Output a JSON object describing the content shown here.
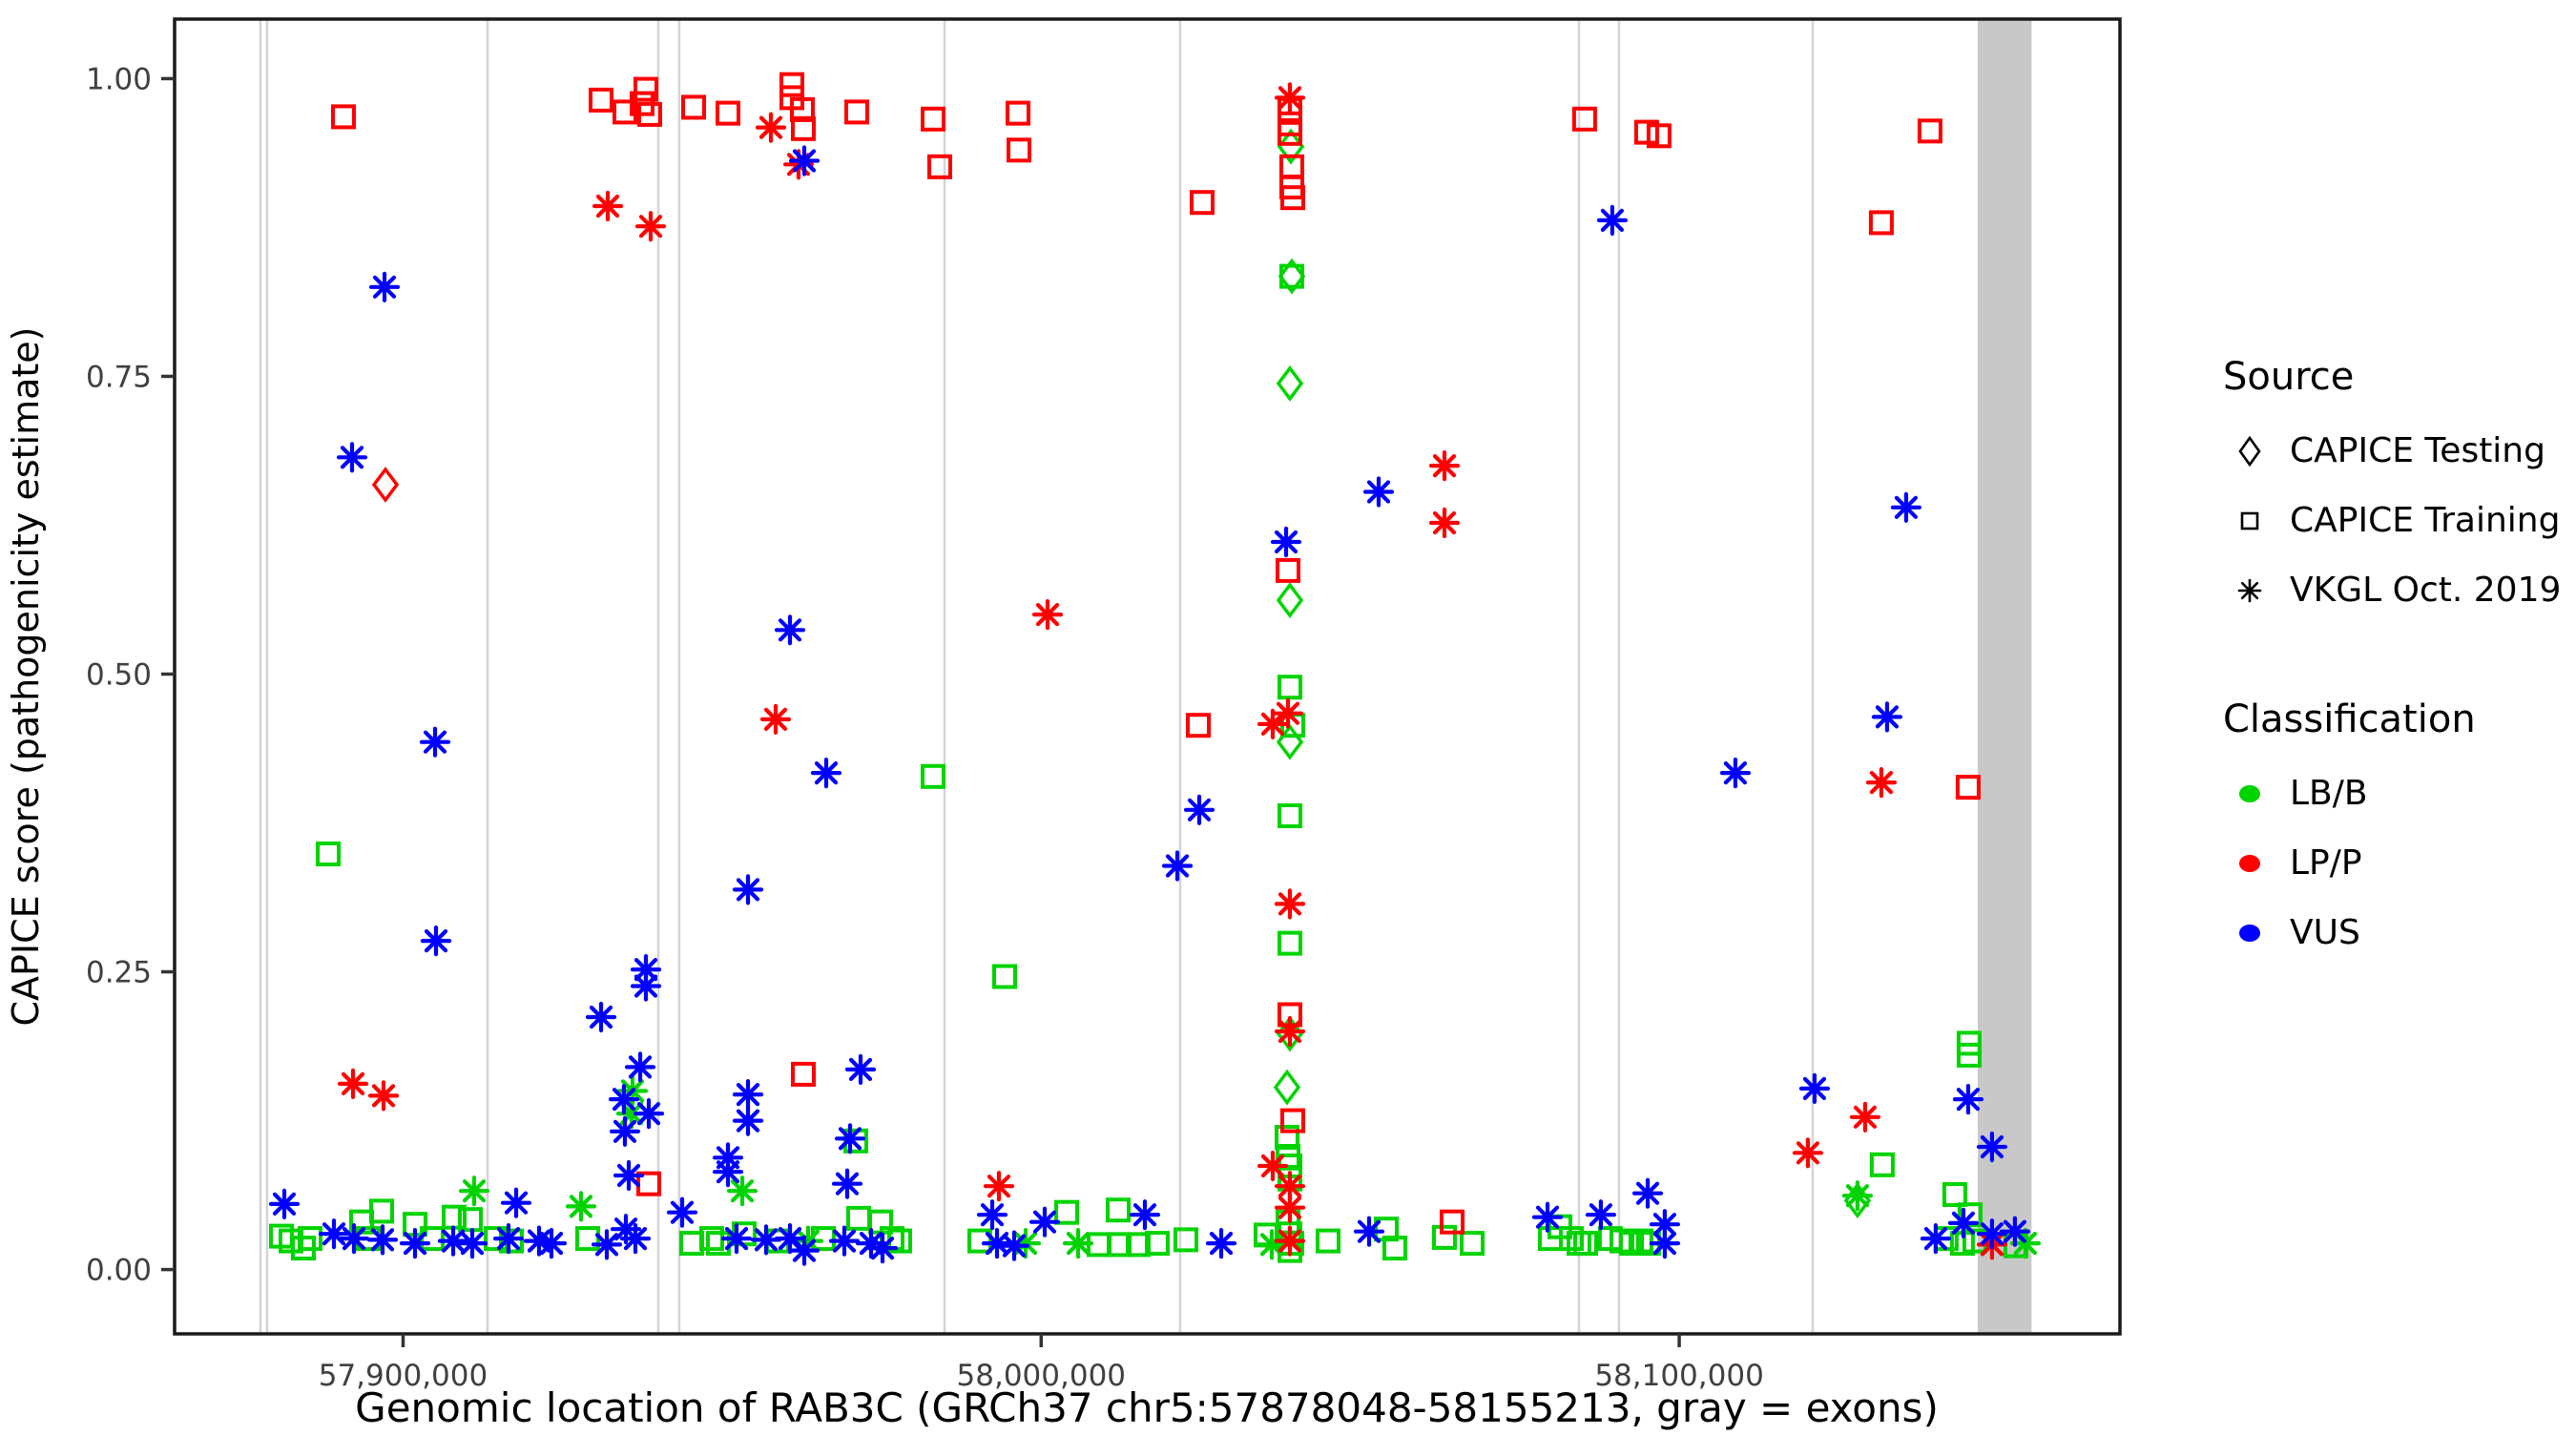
{
  "axis": {
    "title_x": "Genomic location of RAB3C (GRCh37 chr5:57878048-58155213, gray = exons)",
    "title_y": "CAPICE score (pathogenicity estimate)"
  },
  "legend": {
    "source": {
      "title": "Source",
      "items": [
        {
          "label": "CAPICE Testing",
          "marker": "diamond"
        },
        {
          "label": "CAPICE Training",
          "marker": "square"
        },
        {
          "label": "VKGL Oct. 2019",
          "marker": "asterisk"
        }
      ]
    },
    "classification": {
      "title": "Classification",
      "items": [
        {
          "label": "LB/B",
          "color": "#00d400"
        },
        {
          "label": "LP/P",
          "color": "#ff0000"
        },
        {
          "label": "VUS",
          "color": "#0000ff"
        }
      ]
    }
  },
  "chart_data": {
    "type": "scatter",
    "title": "",
    "xlabel": "Genomic location of RAB3C (GRCh37 chr5:57878048-58155213, gray = exons)",
    "ylabel": "CAPICE score (pathogenicity estimate)",
    "x_domain": [
      57864190,
      58169071
    ],
    "y_domain": [
      -0.054,
      1.05
    ],
    "x_ticks": [
      {
        "value": 57900000,
        "label": "57,900,000"
      },
      {
        "value": 58000000,
        "label": "58,000,000"
      },
      {
        "value": 58100000,
        "label": "58,100,000"
      }
    ],
    "y_ticks": [
      {
        "value": 0.0,
        "label": "0.00"
      },
      {
        "value": 0.25,
        "label": "0.25"
      },
      {
        "value": 0.5,
        "label": "0.50"
      },
      {
        "value": 0.75,
        "label": "0.75"
      },
      {
        "value": 1.0,
        "label": "1.00"
      }
    ],
    "grid": false,
    "legend_position": "right",
    "exons": {
      "line_positions_bp": [
        57877644,
        57878690,
        57913233,
        57939997,
        57943283,
        57984853,
        58021784,
        58084283,
        58090563,
        58120916
      ],
      "band_bp": [
        58146783,
        58155213
      ],
      "line_color": "#d4d4d4",
      "band_color": "#c8c8c8"
    },
    "marker_codes": {
      "s": "square (CAPICE Training)",
      "d": "diamond (CAPICE Testing)",
      "a": "asterisk (VKGL Oct. 2019)"
    },
    "class_codes": {
      "g": "LB/B",
      "r": "LP/P",
      "b": "VUS"
    },
    "class_colors": {
      "g": "#00d400",
      "r": "#ff0000",
      "b": "#0000ff"
    },
    "points_columns": [
      "genomic_position",
      "capice_score",
      "marker",
      "classification"
    ],
    "points": [
      [
        57880936,
        0.028,
        "s",
        "g"
      ],
      [
        57882431,
        0.024,
        "s",
        "g"
      ],
      [
        57884375,
        0.018,
        "s",
        "g"
      ],
      [
        57885422,
        0.026,
        "s",
        "g"
      ],
      [
        57888263,
        0.349,
        "s",
        "g"
      ],
      [
        57893496,
        0.04,
        "s",
        "g"
      ],
      [
        57894543,
        0.026,
        "s",
        "g"
      ],
      [
        57896636,
        0.049,
        "s",
        "g"
      ],
      [
        57901869,
        0.038,
        "s",
        "g"
      ],
      [
        57904560,
        0.026,
        "s",
        "g"
      ],
      [
        57908000,
        0.044,
        "s",
        "g"
      ],
      [
        57910541,
        0.042,
        "s",
        "g"
      ],
      [
        57914578,
        0.026,
        "s",
        "g"
      ],
      [
        57916971,
        0.024,
        "s",
        "g"
      ],
      [
        57928932,
        0.026,
        "s",
        "g"
      ],
      [
        57945230,
        0.022,
        "s",
        "g"
      ],
      [
        57948370,
        0.026,
        "s",
        "g"
      ],
      [
        57949416,
        0.022,
        "s",
        "g"
      ],
      [
        57953453,
        0.03,
        "s",
        "g"
      ],
      [
        57958687,
        0.024,
        "s",
        "g"
      ],
      [
        57965864,
        0.026,
        "s",
        "g"
      ],
      [
        57970947,
        0.108,
        "s",
        "g"
      ],
      [
        57971396,
        0.043,
        "s",
        "g"
      ],
      [
        57974835,
        0.04,
        "s",
        "g"
      ],
      [
        57976629,
        0.026,
        "s",
        "g"
      ],
      [
        57977825,
        0.024,
        "s",
        "g"
      ],
      [
        57983058,
        0.414,
        "s",
        "g"
      ],
      [
        57990385,
        0.024,
        "s",
        "g"
      ],
      [
        57994272,
        0.246,
        "s",
        "g"
      ],
      [
        58003991,
        0.048,
        "s",
        "g"
      ],
      [
        58009075,
        0.021,
        "s",
        "g"
      ],
      [
        58012065,
        0.05,
        "s",
        "g"
      ],
      [
        58012215,
        0.021,
        "s",
        "g"
      ],
      [
        58015205,
        0.021,
        "s",
        "g"
      ],
      [
        58018196,
        0.022,
        "s",
        "g"
      ],
      [
        58022681,
        0.025,
        "s",
        "g"
      ],
      [
        58044959,
        0.024,
        "s",
        "g"
      ],
      [
        58054080,
        0.034,
        "s",
        "g"
      ],
      [
        58055426,
        0.018,
        "s",
        "g"
      ],
      [
        58063201,
        0.027,
        "s",
        "g"
      ],
      [
        58067537,
        0.022,
        "s",
        "g"
      ],
      [
        58079798,
        0.026,
        "s",
        "g"
      ],
      [
        58081293,
        0.036,
        "s",
        "g"
      ],
      [
        58083087,
        0.026,
        "s",
        "g"
      ],
      [
        58084283,
        0.022,
        "s",
        "g"
      ],
      [
        58085330,
        0.022,
        "s",
        "g"
      ],
      [
        58089217,
        0.026,
        "s",
        "g"
      ],
      [
        58091012,
        0.024,
        "s",
        "g"
      ],
      [
        58092507,
        0.022,
        "s",
        "g"
      ],
      [
        58094002,
        0.024,
        "s",
        "g"
      ],
      [
        58095198,
        0.022,
        "s",
        "g"
      ],
      [
        58131830,
        0.088,
        "s",
        "g"
      ],
      [
        58141848,
        0.026,
        "s",
        "g"
      ],
      [
        58143194,
        0.063,
        "s",
        "g"
      ],
      [
        58144390,
        0.022,
        "s",
        "g"
      ],
      [
        58145437,
        0.19,
        "s",
        "g"
      ],
      [
        58145437,
        0.18,
        "s",
        "g"
      ],
      [
        58145587,
        0.046,
        "s",
        "g"
      ],
      [
        58146334,
        0.024,
        "s",
        "g"
      ],
      [
        58152764,
        0.02,
        "s",
        "g"
      ],
      [
        58039278,
        0.834,
        "s",
        "g"
      ],
      [
        58038979,
        0.489,
        "s",
        "g"
      ],
      [
        58039427,
        0.457,
        "s",
        "g"
      ],
      [
        58038979,
        0.381,
        "s",
        "g"
      ],
      [
        58038979,
        0.274,
        "s",
        "g"
      ],
      [
        58038530,
        0.111,
        "s",
        "g"
      ],
      [
        58038680,
        0.095,
        "s",
        "g"
      ],
      [
        58038979,
        0.087,
        "s",
        "g"
      ],
      [
        58038979,
        0.076,
        "s",
        "g"
      ],
      [
        58038680,
        0.04,
        "s",
        "g"
      ],
      [
        58038979,
        0.03,
        "s",
        "g"
      ],
      [
        58035241,
        0.029,
        "s",
        "g"
      ],
      [
        58039278,
        0.022,
        "s",
        "g"
      ],
      [
        58038979,
        0.016,
        "s",
        "g"
      ],
      [
        58039128,
        0.943,
        "d",
        "g"
      ],
      [
        58039278,
        0.834,
        "d",
        "g"
      ],
      [
        58038979,
        0.744,
        "d",
        "g"
      ],
      [
        58038979,
        0.562,
        "d",
        "g"
      ],
      [
        58038979,
        0.443,
        "d",
        "g"
      ],
      [
        58038979,
        0.198,
        "d",
        "g"
      ],
      [
        58038530,
        0.153,
        "d",
        "g"
      ],
      [
        58127943,
        0.058,
        "d",
        "g"
      ],
      [
        57911139,
        0.066,
        "a",
        "g"
      ],
      [
        57927885,
        0.053,
        "a",
        "g"
      ],
      [
        57935960,
        0.15,
        "a",
        "g"
      ],
      [
        57935810,
        0.131,
        "a",
        "g"
      ],
      [
        57953154,
        0.066,
        "a",
        "g"
      ],
      [
        57963471,
        0.024,
        "a",
        "g"
      ],
      [
        57997562,
        0.022,
        "a",
        "g"
      ],
      [
        58005785,
        0.022,
        "a",
        "g"
      ],
      [
        58036138,
        0.021,
        "a",
        "g"
      ],
      [
        58127943,
        0.062,
        "a",
        "g"
      ],
      [
        58154259,
        0.022,
        "a",
        "g"
      ],
      [
        57890655,
        0.968,
        "s",
        "r"
      ],
      [
        57931025,
        0.982,
        "s",
        "r"
      ],
      [
        57934763,
        0.972,
        "s",
        "r"
      ],
      [
        57937455,
        0.979,
        "s",
        "r"
      ],
      [
        57938053,
        0.991,
        "s",
        "r"
      ],
      [
        57938651,
        0.97,
        "s",
        "r"
      ],
      [
        57945529,
        0.976,
        "s",
        "r"
      ],
      [
        57950912,
        0.971,
        "s",
        "r"
      ],
      [
        57960929,
        0.995,
        "s",
        "r"
      ],
      [
        57960929,
        0.984,
        "s",
        "r"
      ],
      [
        57962574,
        0.974,
        "s",
        "r"
      ],
      [
        57962724,
        0.958,
        "s",
        "r"
      ],
      [
        57971097,
        0.972,
        "s",
        "r"
      ],
      [
        57983058,
        0.966,
        "s",
        "r"
      ],
      [
        57984105,
        0.926,
        "s",
        "r"
      ],
      [
        57996365,
        0.971,
        "s",
        "r"
      ],
      [
        57996515,
        0.94,
        "s",
        "r"
      ],
      [
        58025223,
        0.896,
        "s",
        "r"
      ],
      [
        58085180,
        0.966,
        "s",
        "r"
      ],
      [
        58094899,
        0.955,
        "s",
        "r"
      ],
      [
        58096843,
        0.952,
        "s",
        "r"
      ],
      [
        58131681,
        0.879,
        "s",
        "r"
      ],
      [
        58139306,
        0.956,
        "s",
        "r"
      ],
      [
        58038979,
        0.974,
        "s",
        "r"
      ],
      [
        58038979,
        0.962,
        "s",
        "r"
      ],
      [
        58038979,
        0.954,
        "s",
        "r"
      ],
      [
        58039278,
        0.926,
        "s",
        "r"
      ],
      [
        58039278,
        0.909,
        "s",
        "r"
      ],
      [
        58039427,
        0.9,
        "s",
        "r"
      ],
      [
        58038680,
        0.587,
        "s",
        "r"
      ],
      [
        58038979,
        0.214,
        "s",
        "r"
      ],
      [
        58039427,
        0.125,
        "s",
        "r"
      ],
      [
        58024625,
        0.457,
        "s",
        "r"
      ],
      [
        58145287,
        0.405,
        "s",
        "r"
      ],
      [
        57962724,
        0.164,
        "s",
        "r"
      ],
      [
        57938501,
        0.072,
        "s",
        "r"
      ],
      [
        58064397,
        0.04,
        "s",
        "r"
      ],
      [
        57897234,
        0.659,
        "d",
        "r"
      ],
      [
        57957640,
        0.959,
        "a",
        "r"
      ],
      [
        57961976,
        0.928,
        "a",
        "r"
      ],
      [
        57932072,
        0.893,
        "a",
        "r"
      ],
      [
        57938800,
        0.876,
        "a",
        "r"
      ],
      [
        58038979,
        0.984,
        "a",
        "r"
      ],
      [
        58001000,
        0.55,
        "a",
        "r"
      ],
      [
        57958388,
        0.462,
        "a",
        "r"
      ],
      [
        58038680,
        0.467,
        "a",
        "r"
      ],
      [
        58036288,
        0.458,
        "a",
        "r"
      ],
      [
        58063201,
        0.675,
        "a",
        "r"
      ],
      [
        58063201,
        0.627,
        "a",
        "r"
      ],
      [
        58038979,
        0.307,
        "a",
        "r"
      ],
      [
        58038979,
        0.2,
        "a",
        "r"
      ],
      [
        58036288,
        0.087,
        "a",
        "r"
      ],
      [
        58038979,
        0.07,
        "a",
        "r"
      ],
      [
        58038979,
        0.052,
        "a",
        "r"
      ],
      [
        58038979,
        0.024,
        "a",
        "r"
      ],
      [
        57892150,
        0.156,
        "a",
        "r"
      ],
      [
        57896935,
        0.146,
        "a",
        "r"
      ],
      [
        57993375,
        0.07,
        "a",
        "r"
      ],
      [
        58120168,
        0.098,
        "a",
        "r"
      ],
      [
        58129139,
        0.128,
        "a",
        "r"
      ],
      [
        58131681,
        0.409,
        "a",
        "r"
      ],
      [
        58149025,
        0.021,
        "a",
        "r"
      ],
      [
        57897084,
        0.825,
        "a",
        "b"
      ],
      [
        57892001,
        0.682,
        "a",
        "b"
      ],
      [
        57905009,
        0.443,
        "a",
        "b"
      ],
      [
        57905158,
        0.276,
        "a",
        "b"
      ],
      [
        57881385,
        0.055,
        "a",
        "b"
      ],
      [
        57889160,
        0.03,
        "a",
        "b"
      ],
      [
        57892300,
        0.026,
        "a",
        "b"
      ],
      [
        57896785,
        0.025,
        "a",
        "b"
      ],
      [
        57901869,
        0.022,
        "a",
        "b"
      ],
      [
        57907850,
        0.024,
        "a",
        "b"
      ],
      [
        57910840,
        0.022,
        "a",
        "b"
      ],
      [
        57916522,
        0.026,
        "a",
        "b"
      ],
      [
        57917718,
        0.056,
        "a",
        "b"
      ],
      [
        57921307,
        0.024,
        "a",
        "b"
      ],
      [
        57923250,
        0.022,
        "a",
        "b"
      ],
      [
        57931025,
        0.212,
        "a",
        "b"
      ],
      [
        57931922,
        0.021,
        "a",
        "b"
      ],
      [
        57934614,
        0.143,
        "a",
        "b"
      ],
      [
        57934763,
        0.116,
        "a",
        "b"
      ],
      [
        57935361,
        0.079,
        "a",
        "b"
      ],
      [
        57934913,
        0.034,
        "a",
        "b"
      ],
      [
        57936408,
        0.026,
        "a",
        "b"
      ],
      [
        57937156,
        0.17,
        "a",
        "b"
      ],
      [
        57938053,
        0.252,
        "a",
        "b"
      ],
      [
        57938053,
        0.238,
        "a",
        "b"
      ],
      [
        57938501,
        0.131,
        "a",
        "b"
      ],
      [
        57943735,
        0.048,
        "a",
        "b"
      ],
      [
        57950912,
        0.094,
        "a",
        "b"
      ],
      [
        57950912,
        0.082,
        "a",
        "b"
      ],
      [
        57952257,
        0.026,
        "a",
        "b"
      ],
      [
        57954051,
        0.319,
        "a",
        "b"
      ],
      [
        57954051,
        0.147,
        "a",
        "b"
      ],
      [
        57954051,
        0.125,
        "a",
        "b"
      ],
      [
        57956892,
        0.025,
        "a",
        "b"
      ],
      [
        57960630,
        0.537,
        "a",
        "b"
      ],
      [
        57960630,
        0.026,
        "a",
        "b"
      ],
      [
        57962873,
        0.931,
        "a",
        "b"
      ],
      [
        57962873,
        0.016,
        "a",
        "b"
      ],
      [
        57966312,
        0.417,
        "a",
        "b"
      ],
      [
        57969153,
        0.024,
        "a",
        "b"
      ],
      [
        57969601,
        0.072,
        "a",
        "b"
      ],
      [
        57970050,
        0.11,
        "a",
        "b"
      ],
      [
        57971695,
        0.168,
        "a",
        "b"
      ],
      [
        57973340,
        0.022,
        "a",
        "b"
      ],
      [
        57975134,
        0.018,
        "a",
        "b"
      ],
      [
        57992329,
        0.046,
        "a",
        "b"
      ],
      [
        57993076,
        0.022,
        "a",
        "b"
      ],
      [
        57995767,
        0.02,
        "a",
        "b"
      ],
      [
        58000552,
        0.04,
        "a",
        "b"
      ],
      [
        58016252,
        0.046,
        "a",
        "b"
      ],
      [
        58021336,
        0.339,
        "a",
        "b"
      ],
      [
        58024775,
        0.386,
        "a",
        "b"
      ],
      [
        58028213,
        0.022,
        "a",
        "b"
      ],
      [
        58038381,
        0.611,
        "a",
        "b"
      ],
      [
        58051389,
        0.032,
        "a",
        "b"
      ],
      [
        58052884,
        0.653,
        "a",
        "b"
      ],
      [
        58079349,
        0.044,
        "a",
        "b"
      ],
      [
        58087722,
        0.046,
        "a",
        "b"
      ],
      [
        58089516,
        0.881,
        "a",
        "b"
      ],
      [
        58095049,
        0.064,
        "a",
        "b"
      ],
      [
        58097740,
        0.038,
        "a",
        "b"
      ],
      [
        58097740,
        0.022,
        "a",
        "b"
      ],
      [
        58108805,
        0.417,
        "a",
        "b"
      ],
      [
        58121215,
        0.152,
        "a",
        "b"
      ],
      [
        58132578,
        0.464,
        "a",
        "b"
      ],
      [
        58135568,
        0.64,
        "a",
        "b"
      ],
      [
        58140203,
        0.026,
        "a",
        "b"
      ],
      [
        58144540,
        0.039,
        "a",
        "b"
      ],
      [
        58145287,
        0.143,
        "a",
        "b"
      ],
      [
        58149025,
        0.103,
        "a",
        "b"
      ],
      [
        58149025,
        0.03,
        "a",
        "b"
      ],
      [
        58152614,
        0.032,
        "a",
        "b"
      ]
    ]
  }
}
